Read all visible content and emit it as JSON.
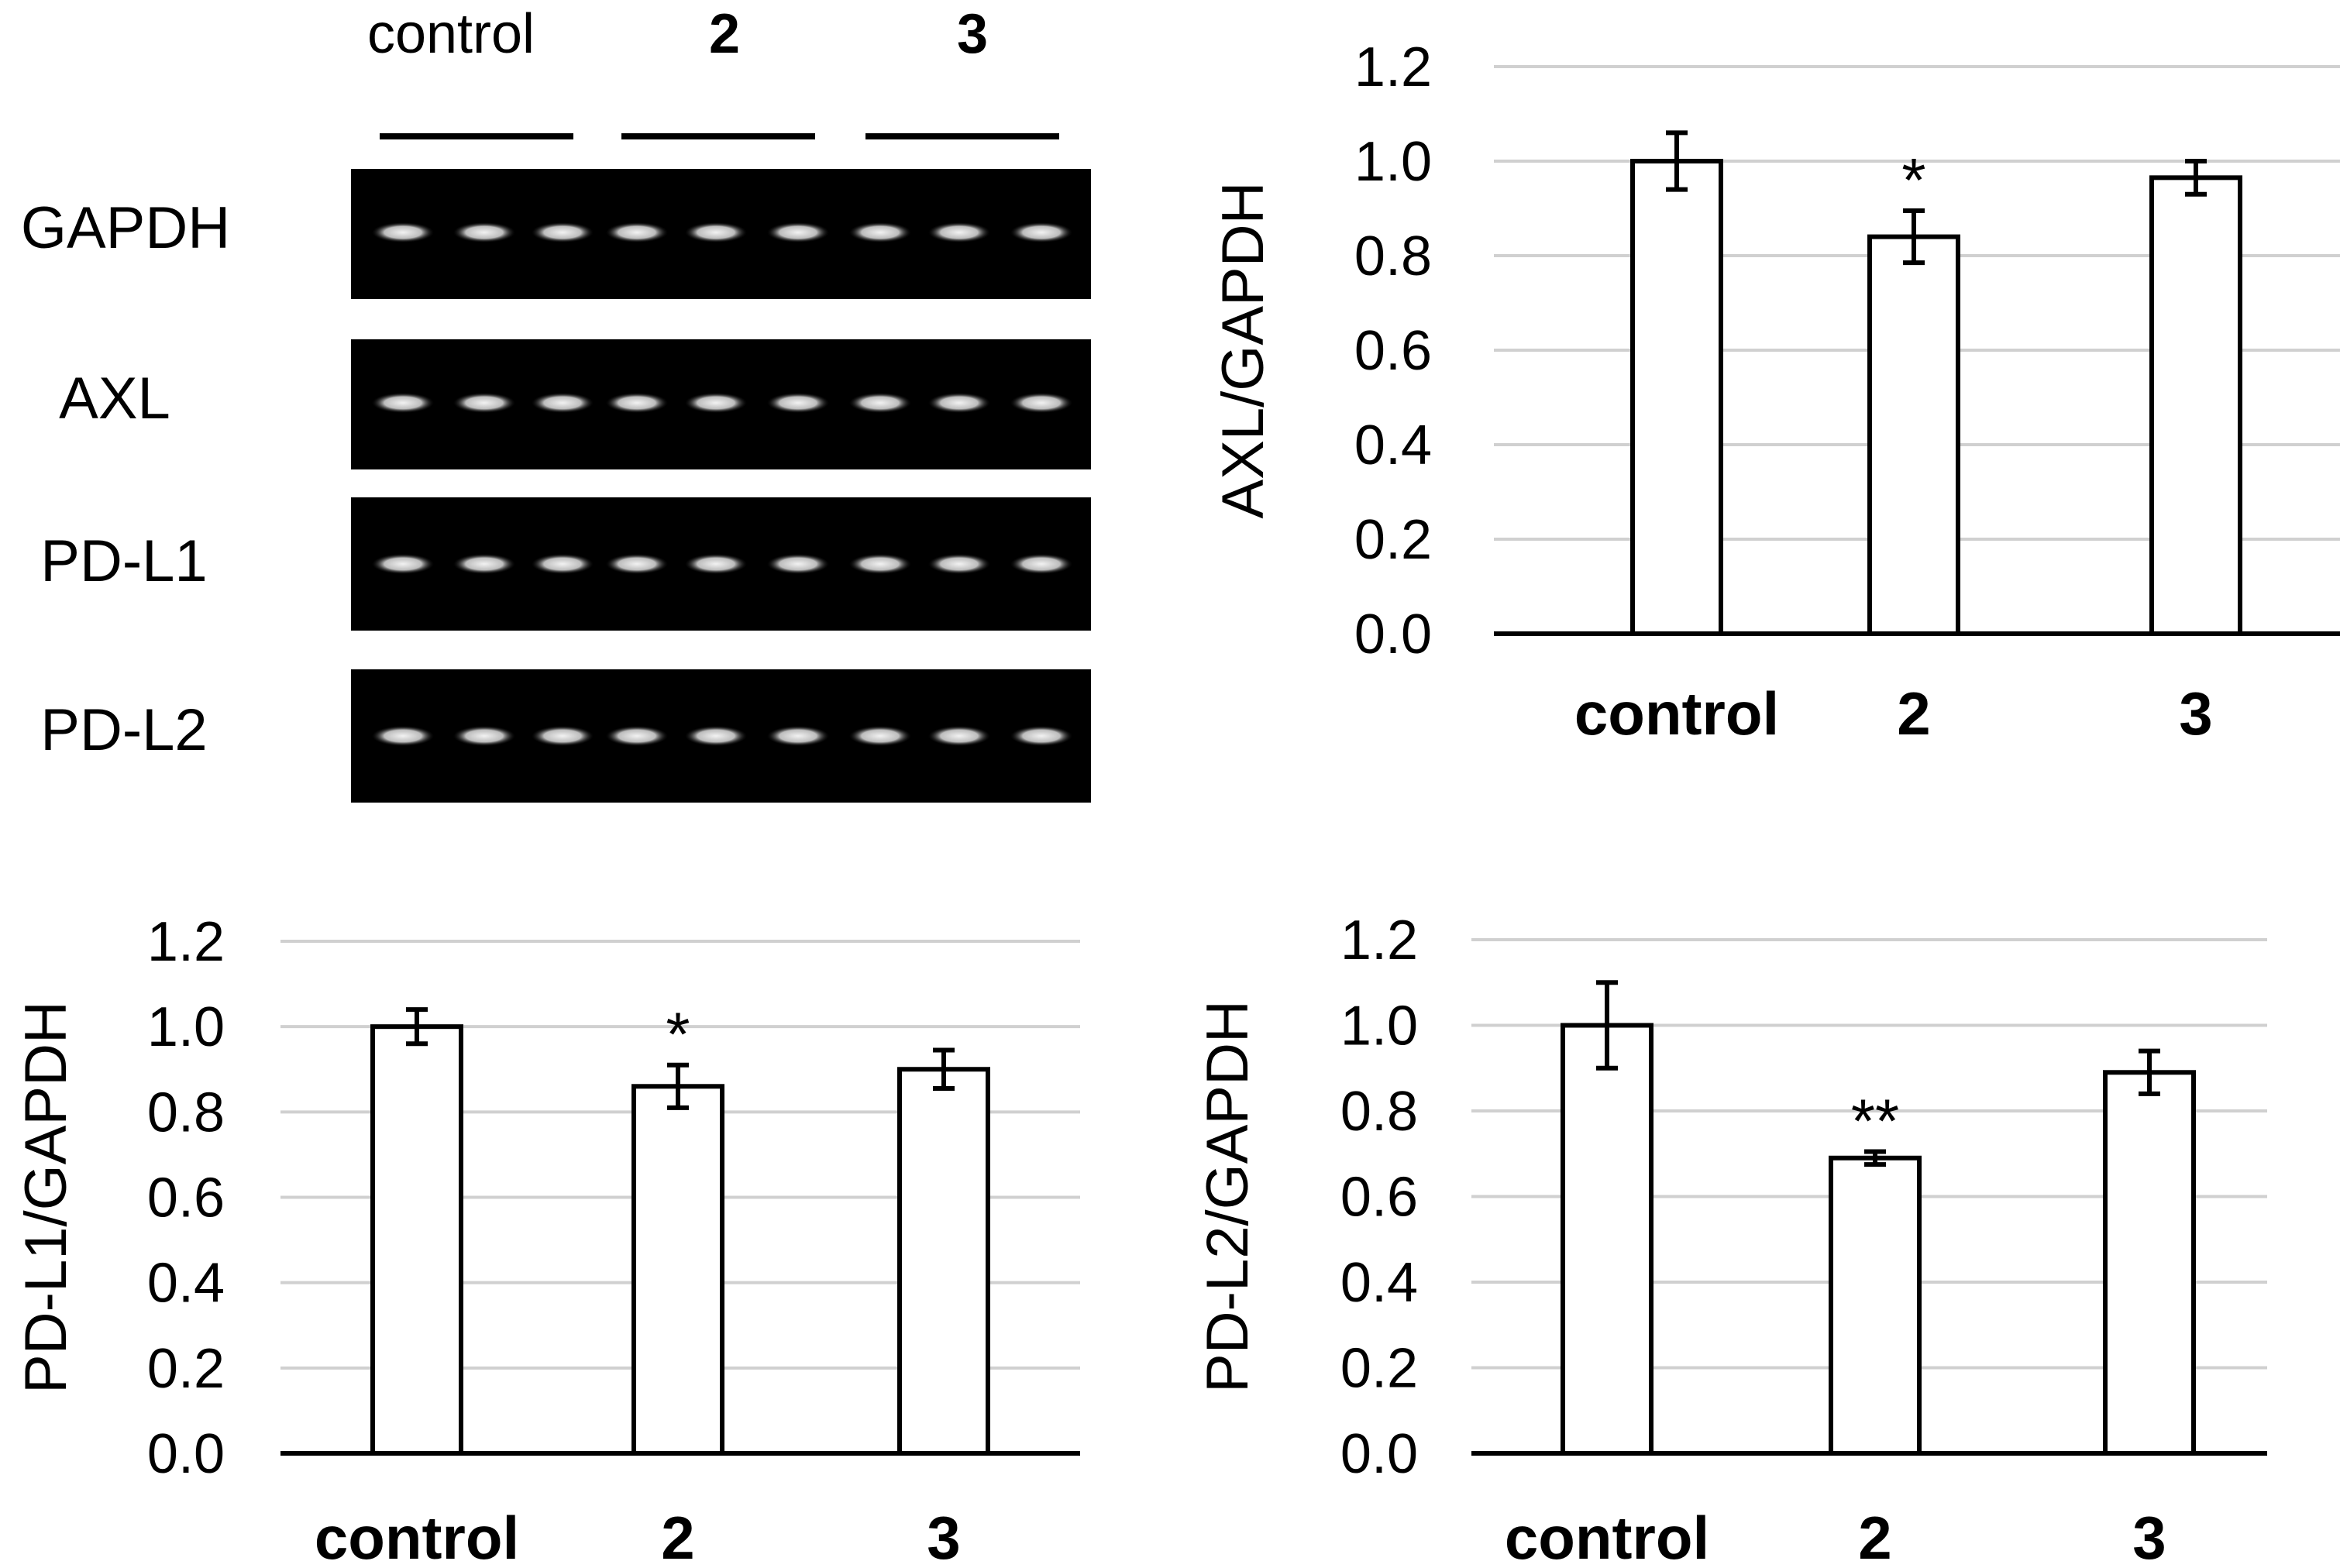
{
  "gel": {
    "group_labels": [
      "control",
      "2",
      "3"
    ],
    "lane_labels": [
      "GAPDH",
      "AXL",
      "PD-L1",
      "PD-L2"
    ],
    "lanes_per_group": 3
  },
  "chart_data": [
    {
      "type": "bar",
      "id": "axl",
      "title": "",
      "xlabel": "",
      "ylabel": "AXL/GAPDH",
      "categories": [
        "control",
        "2",
        "3"
      ],
      "values": [
        1.0,
        0.84,
        0.965
      ],
      "errors": [
        0.06,
        0.055,
        0.035
      ],
      "annotations": [
        "",
        "*",
        ""
      ],
      "ylim": [
        0.0,
        1.2
      ],
      "yticks": [
        "0.0",
        "0.2",
        "0.4",
        "0.6",
        "0.8",
        "1.0",
        "1.2"
      ],
      "grid": true
    },
    {
      "type": "bar",
      "id": "pdl1",
      "title": "",
      "xlabel": "",
      "ylabel": "PD-L1/GAPDH",
      "categories": [
        "control",
        "2",
        "3"
      ],
      "values": [
        1.0,
        0.86,
        0.9
      ],
      "errors": [
        0.04,
        0.05,
        0.045
      ],
      "annotations": [
        "",
        "*",
        ""
      ],
      "ylim": [
        0.0,
        1.2
      ],
      "yticks": [
        "0.0",
        "0.2",
        "0.4",
        "0.6",
        "0.8",
        "1.0",
        "1.2"
      ],
      "grid": true
    },
    {
      "type": "bar",
      "id": "pdl2",
      "title": "",
      "xlabel": "",
      "ylabel": "PD-L2/GAPDH",
      "categories": [
        "control",
        "2",
        "3"
      ],
      "values": [
        1.0,
        0.69,
        0.89
      ],
      "errors": [
        0.1,
        0.015,
        0.05
      ],
      "annotations": [
        "",
        "**",
        ""
      ],
      "ylim": [
        0.0,
        1.2
      ],
      "yticks": [
        "0.0",
        "0.2",
        "0.4",
        "0.6",
        "0.8",
        "1.0",
        "1.2"
      ],
      "grid": true
    }
  ]
}
